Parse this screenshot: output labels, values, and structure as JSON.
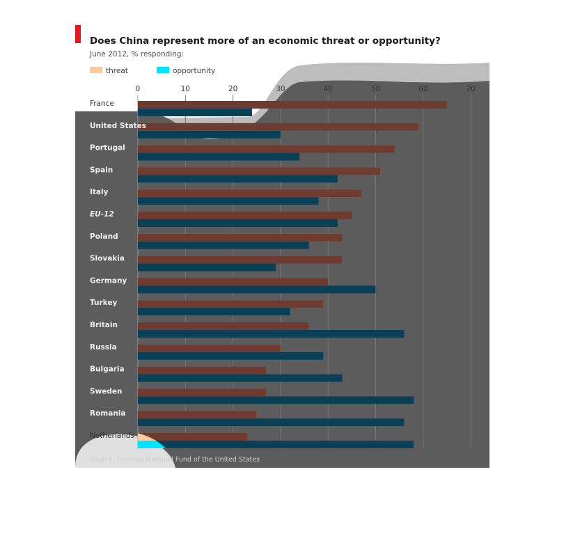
{
  "chart_data": {
    "type": "bar",
    "orientation": "horizontal",
    "title": "Does China represent more of an economic threat or opportunity?",
    "subtitle": "June 2012, % responding:",
    "source": "Source: German Marshall Fund of the United States",
    "legend_placement": "top-left",
    "grid": true,
    "xlim": [
      0,
      70
    ],
    "xticks": [
      "0",
      "10",
      "20",
      "30",
      "40",
      "50",
      "60",
      "70"
    ],
    "categories": [
      "France",
      "United States",
      "Portugal",
      "Spain",
      "Italy",
      "EU-12",
      "Poland",
      "Slovakia",
      "Germany",
      "Turkey",
      "Britain",
      "Russia",
      "Bulgaria",
      "Sweden",
      "Romania",
      "Netherlands"
    ],
    "italic_categories": [
      "EU-12"
    ],
    "series": [
      {
        "name": "threat",
        "color": "#f9cba0",
        "values": [
          65,
          59,
          54,
          51,
          47,
          45,
          43,
          43,
          40,
          39,
          36,
          30,
          27,
          27,
          25,
          23
        ]
      },
      {
        "name": "opportunity",
        "color": "#00e5ff",
        "values": [
          24,
          30,
          34,
          42,
          38,
          42,
          36,
          29,
          50,
          32,
          56,
          39,
          43,
          58,
          56,
          58
        ]
      }
    ]
  },
  "style": {
    "accent": "#e8171f",
    "overlay": "#5c5c5c",
    "overlay_threat": "#6e3b30",
    "overlay_opportunity": "#0b3f55",
    "wave": "#bdbdbd"
  }
}
